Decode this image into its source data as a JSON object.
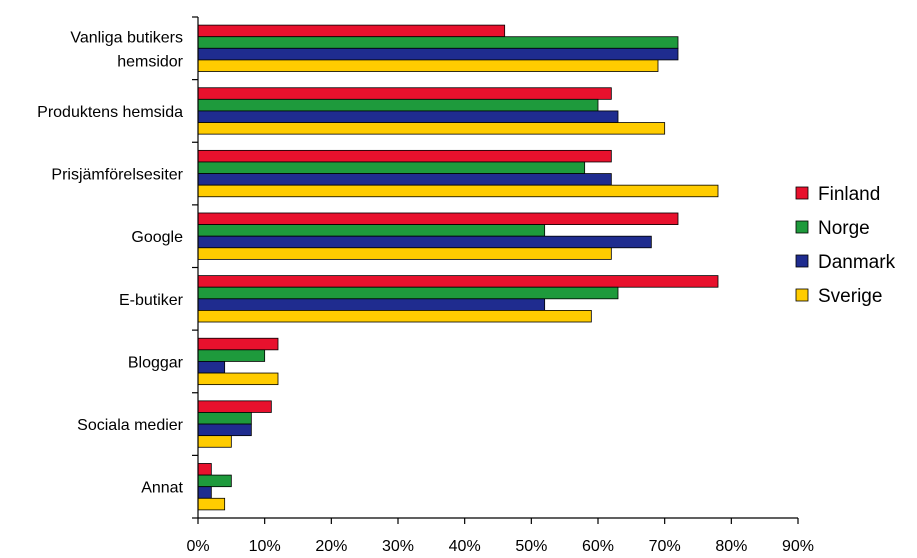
{
  "chart_data": {
    "type": "bar",
    "orientation": "horizontal",
    "categories": [
      [
        "Vanliga butikers",
        "hemsidor"
      ],
      [
        "Produktens hemsida"
      ],
      [
        "Prisjämförelsesiter"
      ],
      [
        "Google"
      ],
      [
        "E-butiker"
      ],
      [
        "Bloggar"
      ],
      [
        "Sociala medier"
      ],
      [
        "Annat"
      ]
    ],
    "series": [
      {
        "name": "Finland",
        "color": "#e8112d",
        "values": [
          46,
          62,
          62,
          72,
          78,
          12,
          11,
          2
        ]
      },
      {
        "name": "Norge",
        "color": "#1e9a3c",
        "values": [
          72,
          60,
          58,
          52,
          63,
          10,
          8,
          5
        ]
      },
      {
        "name": "Danmark",
        "color": "#1f2c8f",
        "values": [
          72,
          63,
          62,
          68,
          52,
          4,
          8,
          2
        ]
      },
      {
        "name": "Sverige",
        "color": "#ffcc00",
        "values": [
          69,
          70,
          78,
          62,
          59,
          12,
          5,
          4
        ]
      }
    ],
    "x_ticks": [
      "0%",
      "10%",
      "20%",
      "30%",
      "40%",
      "50%",
      "60%",
      "70%",
      "80%",
      "90%"
    ],
    "xlim": [
      0,
      90
    ],
    "grid": false,
    "legend_position": "right"
  }
}
